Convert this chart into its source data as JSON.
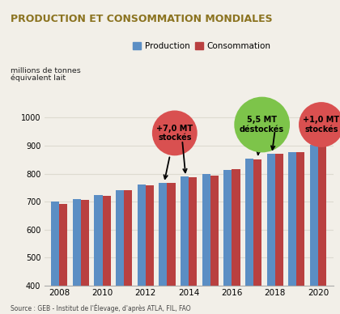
{
  "years": [
    2008,
    2009,
    2010,
    2011,
    2012,
    2013,
    2014,
    2015,
    2016,
    2017,
    2018,
    2019,
    2020
  ],
  "production": [
    700,
    710,
    723,
    742,
    760,
    768,
    790,
    800,
    812,
    855,
    872,
    878,
    903
  ],
  "consommation": [
    693,
    707,
    722,
    740,
    757,
    766,
    788,
    793,
    815,
    852,
    872,
    876,
    900
  ],
  "bar_color_prod": "#5b8ec4",
  "bar_color_conso": "#b94040",
  "title": "PRODUCTION ET CONSOMMATION MONDIALES",
  "title_color": "#8b7320",
  "ylabel1": "millions de tonnes",
  "ylabel2": "équivalent lait",
  "ylim": [
    400,
    1050
  ],
  "yticks": [
    400,
    500,
    600,
    700,
    800,
    900,
    1000
  ],
  "source_text": "Source : GEB - Institut de l'Élevage, d'après ATLA, FIL, FAO",
  "legend_prod": "Production",
  "legend_conso": "Consommation",
  "bg_color": "#f2efe8",
  "ann1_text": "+7,0 MT\nstockés",
  "ann1_color": "#d95050",
  "ann2_text": "5,5 MT\ndéstockés",
  "ann2_color": "#7dc44a",
  "ann3_text": "+1,0 MT\nstockés",
  "ann3_color": "#d95050",
  "header_bar_color": "#7a6820",
  "grid_color": "#dddad0"
}
